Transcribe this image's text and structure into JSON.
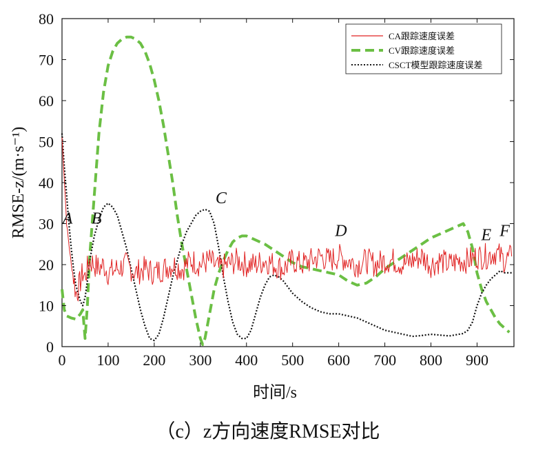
{
  "chart_data": {
    "type": "line",
    "xlabel": "时间/s",
    "ylabel": "RMSE-z/(m·s⁻¹)",
    "xlim": [
      0,
      980
    ],
    "ylim": [
      0,
      80
    ],
    "xticks": [
      "0",
      "100",
      "200",
      "300",
      "400",
      "500",
      "600",
      "700",
      "800",
      "900"
    ],
    "yticks": [
      "0",
      "10",
      "20",
      "30",
      "40",
      "50",
      "60",
      "70",
      "80"
    ],
    "grid": false,
    "legend_position": "top-right",
    "series": [
      {
        "name": "CA跟踪速度误差",
        "color": "#e02020",
        "style": "solid",
        "x": [
          0,
          5,
          10,
          15,
          20,
          25,
          30,
          35,
          40,
          45,
          50,
          55,
          60,
          70,
          80,
          90,
          100,
          120,
          140,
          160,
          180,
          200,
          220,
          240,
          260,
          280,
          300,
          320,
          340,
          360,
          380,
          400,
          420,
          440,
          460,
          480,
          500,
          520,
          540,
          560,
          580,
          600,
          620,
          640,
          660,
          680,
          700,
          720,
          740,
          760,
          780,
          800,
          820,
          840,
          860,
          880,
          900,
          920,
          940,
          960,
          975
        ],
        "y": [
          51,
          41,
          30,
          25,
          20,
          17,
          13,
          14,
          16,
          18,
          17,
          19,
          21,
          20,
          19,
          20,
          18,
          19,
          20,
          18,
          19,
          18,
          19,
          20,
          19,
          21,
          20,
          21,
          19,
          20,
          21,
          20,
          20,
          21,
          20,
          19,
          21,
          20,
          21,
          22,
          21,
          22,
          21,
          20,
          21,
          20,
          21,
          21,
          20,
          21,
          22,
          20,
          21,
          20,
          21,
          21,
          22,
          22,
          23,
          21,
          22
        ]
      },
      {
        "name": "CV跟踪速度误差",
        "color": "#6bbf44",
        "style": "dashed",
        "x": [
          0,
          5,
          10,
          20,
          30,
          40,
          45,
          50,
          55,
          60,
          70,
          80,
          90,
          100,
          110,
          120,
          130,
          140,
          150,
          160,
          170,
          180,
          190,
          200,
          210,
          220,
          230,
          240,
          250,
          260,
          270,
          280,
          290,
          300,
          305,
          310,
          320,
          330,
          340,
          350,
          360,
          370,
          380,
          390,
          400,
          420,
          440,
          460,
          480,
          500,
          520,
          540,
          560,
          580,
          600,
          620,
          640,
          660,
          680,
          700,
          720,
          740,
          760,
          780,
          800,
          820,
          840,
          860,
          870,
          880,
          890,
          900,
          910,
          920,
          930,
          940,
          950,
          960,
          970
        ],
        "y": [
          14,
          9,
          7.5,
          7,
          6.7,
          8,
          9,
          2,
          10,
          22,
          37,
          52,
          62,
          68.5,
          72,
          74,
          75,
          75.5,
          75.5,
          75,
          74,
          72,
          69,
          65,
          60,
          54,
          47,
          40,
          32,
          25,
          19,
          13,
          7,
          2,
          0.5,
          2,
          8,
          14,
          18,
          21,
          23.5,
          25.5,
          26.5,
          27,
          27,
          26,
          25,
          23.5,
          22,
          20.5,
          19.5,
          19,
          18.5,
          18,
          17.5,
          16,
          15,
          15.5,
          17,
          19,
          20.5,
          22,
          23.5,
          25,
          26.5,
          27.5,
          28.5,
          29.5,
          30,
          28,
          24,
          18,
          14,
          11,
          9,
          7,
          5.5,
          4.5,
          3.5
        ]
      },
      {
        "name": "CSCT模型跟踪速度误差",
        "color": "#111111",
        "style": "dotted",
        "x": [
          0,
          5,
          10,
          15,
          20,
          25,
          30,
          35,
          40,
          45,
          50,
          55,
          60,
          70,
          80,
          90,
          100,
          110,
          120,
          130,
          140,
          150,
          160,
          170,
          180,
          190,
          200,
          210,
          220,
          230,
          240,
          250,
          260,
          270,
          280,
          290,
          300,
          310,
          320,
          330,
          340,
          350,
          360,
          370,
          380,
          390,
          400,
          410,
          420,
          430,
          440,
          450,
          460,
          470,
          480,
          490,
          500,
          520,
          540,
          560,
          580,
          600,
          620,
          640,
          660,
          680,
          700,
          720,
          740,
          760,
          780,
          800,
          820,
          840,
          860,
          870,
          880,
          890,
          900,
          910,
          920,
          930,
          940,
          950,
          960,
          975
        ],
        "y": [
          52,
          44,
          37,
          30,
          24,
          19,
          15,
          13,
          11,
          10,
          12,
          16,
          21,
          27,
          31,
          34,
          35,
          34,
          32,
          28,
          24,
          19,
          14,
          9,
          5,
          2,
          1.5,
          3,
          7,
          12,
          17,
          21,
          25,
          28,
          30,
          32,
          33,
          33.5,
          33,
          30,
          24,
          17,
          11,
          6,
          3,
          2,
          2,
          4,
          8,
          12,
          15,
          17,
          17.5,
          17,
          16,
          14.5,
          13,
          11,
          9.5,
          8.5,
          8,
          8,
          7.5,
          7,
          6,
          5,
          4,
          3.5,
          3,
          2.5,
          2.7,
          3,
          2.8,
          2.6,
          3,
          3.2,
          4,
          6,
          10,
          13,
          15,
          16.5,
          17.5,
          18.5,
          18,
          18
        ]
      }
    ],
    "annotations": [
      {
        "label": "A",
        "x": 12,
        "y": 30
      },
      {
        "label": "B",
        "x": 75,
        "y": 30
      },
      {
        "label": "C",
        "x": 345,
        "y": 35
      },
      {
        "label": "D",
        "x": 605,
        "y": 27
      },
      {
        "label": "E",
        "x": 920,
        "y": 26
      },
      {
        "label": "F",
        "x": 960,
        "y": 27
      }
    ]
  },
  "caption": "（c）z方向速度RMSE对比"
}
